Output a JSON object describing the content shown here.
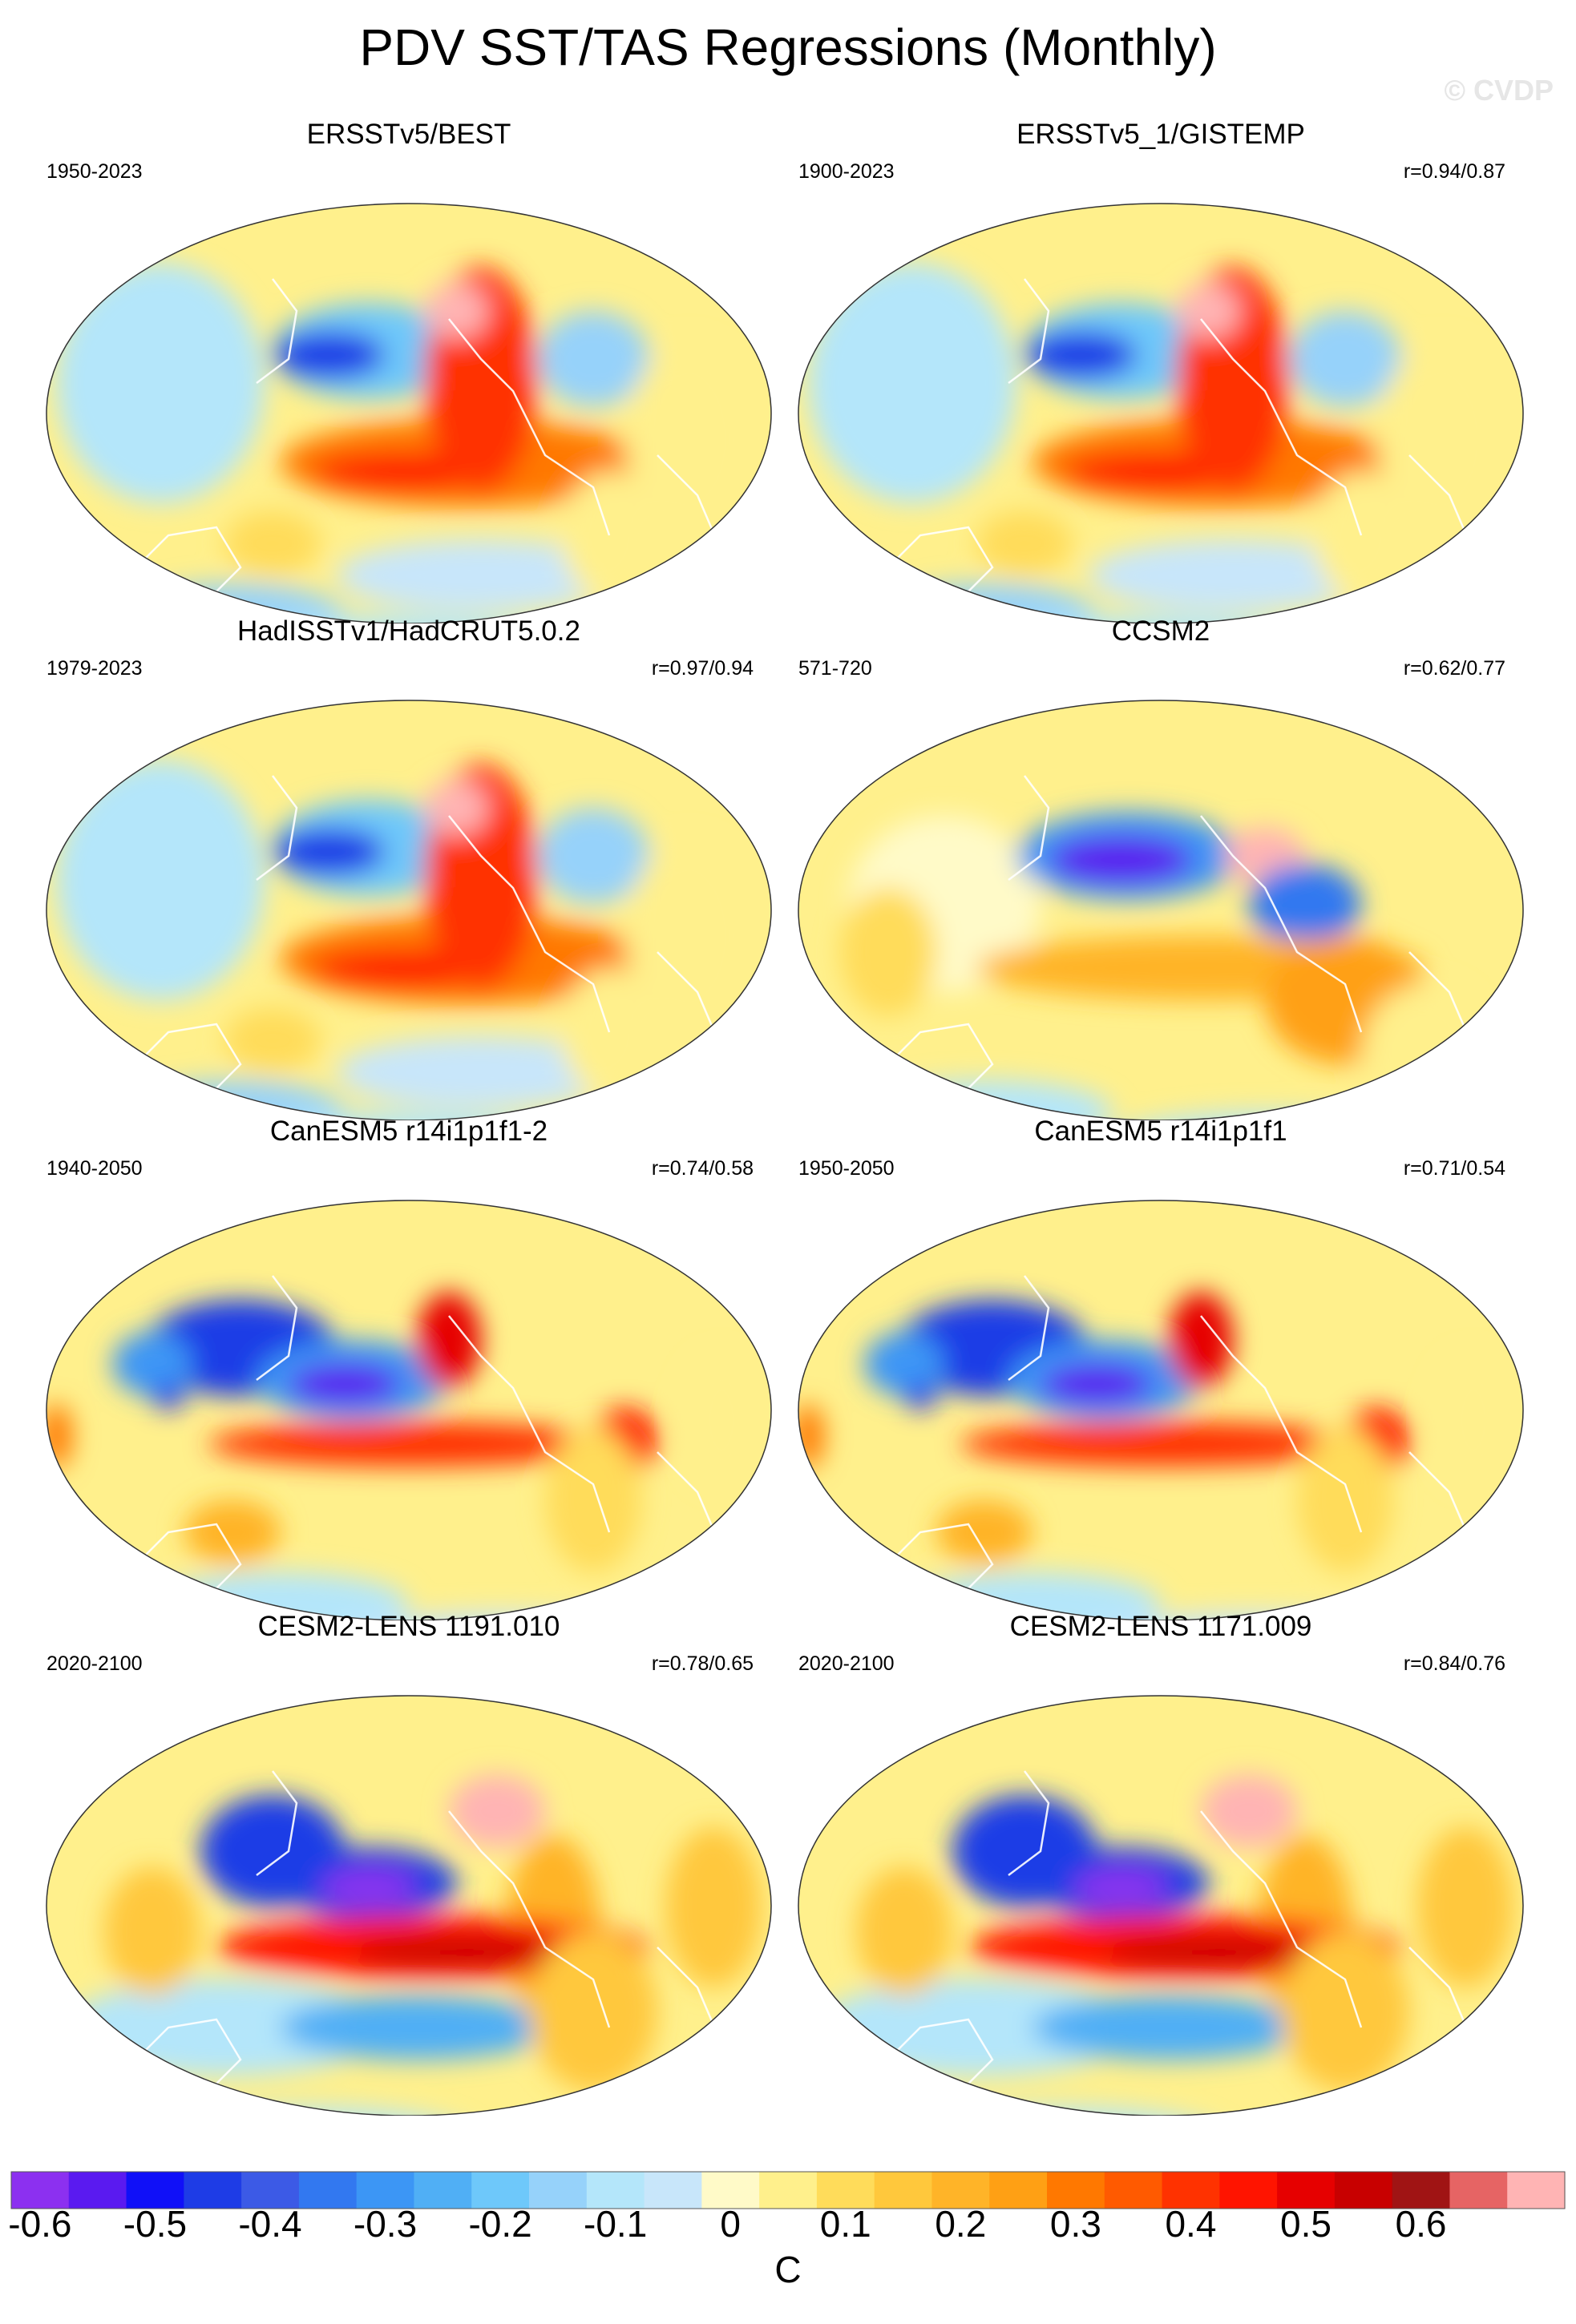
{
  "title": "PDV SST/TAS Regressions (Monthly)",
  "watermark": "© CVDP",
  "panels": [
    {
      "name": "ERSSTv5/BEST",
      "years": "1950-2023",
      "corr": "",
      "pattern": "obs"
    },
    {
      "name": "ERSSTv5_1/GISTEMP",
      "years": "1900-2023",
      "corr": "r=0.94/0.87",
      "pattern": "obs"
    },
    {
      "name": "HadISSTv1/HadCRUT5.0.2",
      "years": "1979-2023",
      "corr": "r=0.97/0.94",
      "pattern": "obs"
    },
    {
      "name": "CCSM2",
      "years": "571-720",
      "corr": "r=0.62/0.77",
      "pattern": "ccsm"
    },
    {
      "name": "CanESM5 r14i1p1f1-2",
      "years": "1940-2050",
      "corr": "r=0.74/0.58",
      "pattern": "canesm"
    },
    {
      "name": "CanESM5 r14i1p1f1",
      "years": "1950-2050",
      "corr": "r=0.71/0.54",
      "pattern": "canesm"
    },
    {
      "name": "CESM2-LENS 1191.010",
      "years": "2020-2100",
      "corr": "r=0.78/0.65",
      "pattern": "cesm"
    },
    {
      "name": "CESM2-LENS 1171.009",
      "years": "2020-2100",
      "corr": "r=0.84/0.76",
      "pattern": "cesm"
    }
  ],
  "colorbar": {
    "unit": "C",
    "colors": [
      "#8c30f0",
      "#5a1af0",
      "#1010f8",
      "#1e3ce6",
      "#3c5ae6",
      "#3278f0",
      "#3c96f5",
      "#50aff5",
      "#6ec8fa",
      "#96d2fa",
      "#b4e6fa",
      "#c8e6fa",
      "#fffac8",
      "#fff08c",
      "#ffdc5a",
      "#ffc83c",
      "#ffb428",
      "#ffa014",
      "#ff7800",
      "#ff5a00",
      "#ff3200",
      "#ff1400",
      "#e60000",
      "#c80000",
      "#a01414",
      "#e66464",
      "#ffb4b4"
    ],
    "ticks": [
      "-0.6",
      "-0.5",
      "-0.4",
      "-0.3",
      "-0.2",
      "-0.1",
      "0",
      "0.1",
      "0.2",
      "0.3",
      "0.4",
      "0.5",
      "0.6"
    ]
  }
}
